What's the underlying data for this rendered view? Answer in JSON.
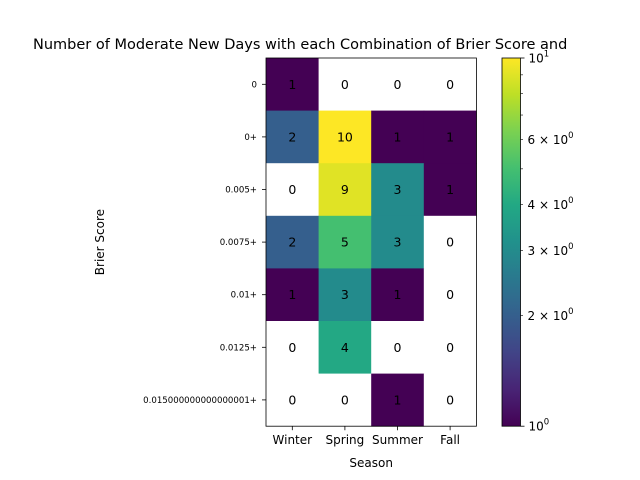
{
  "chart_data": {
    "type": "heatmap",
    "title": "Number of Moderate New Days with each Combination of Brier Score and",
    "xlabel": "Season",
    "ylabel": "Brier Score",
    "x_categories": [
      "Winter",
      "Spring",
      "Summer",
      "Fall"
    ],
    "y_categories": [
      "0",
      "0+",
      "0.005+",
      "0.0075+",
      "0.01+",
      "0.0125+",
      "0.015000000000000001+"
    ],
    "values": [
      [
        1,
        0,
        0,
        0
      ],
      [
        2,
        10,
        1,
        1
      ],
      [
        0,
        9,
        3,
        1
      ],
      [
        2,
        5,
        3,
        0
      ],
      [
        1,
        3,
        1,
        0
      ],
      [
        0,
        4,
        0,
        0
      ],
      [
        0,
        0,
        1,
        0
      ]
    ],
    "zero_cell_color": "#ffffff",
    "colormap": "viridis",
    "color_scale": "log",
    "colorbar": {
      "range": [
        1,
        10
      ],
      "major_ticks": [
        {
          "value": 1,
          "base": "10",
          "exp": "0"
        },
        {
          "value": 10,
          "base": "10",
          "exp": "1"
        }
      ],
      "minor_labels": [
        {
          "value": 2,
          "mant": "2 × 10",
          "exp": "0"
        },
        {
          "value": 3,
          "mant": "3 × 10",
          "exp": "0"
        },
        {
          "value": 4,
          "mant": "4 × 10",
          "exp": "0"
        },
        {
          "value": 6,
          "mant": "6 × 10",
          "exp": "0"
        }
      ],
      "minor_ticks_unlabeled": [
        5,
        7,
        8,
        9
      ]
    }
  }
}
